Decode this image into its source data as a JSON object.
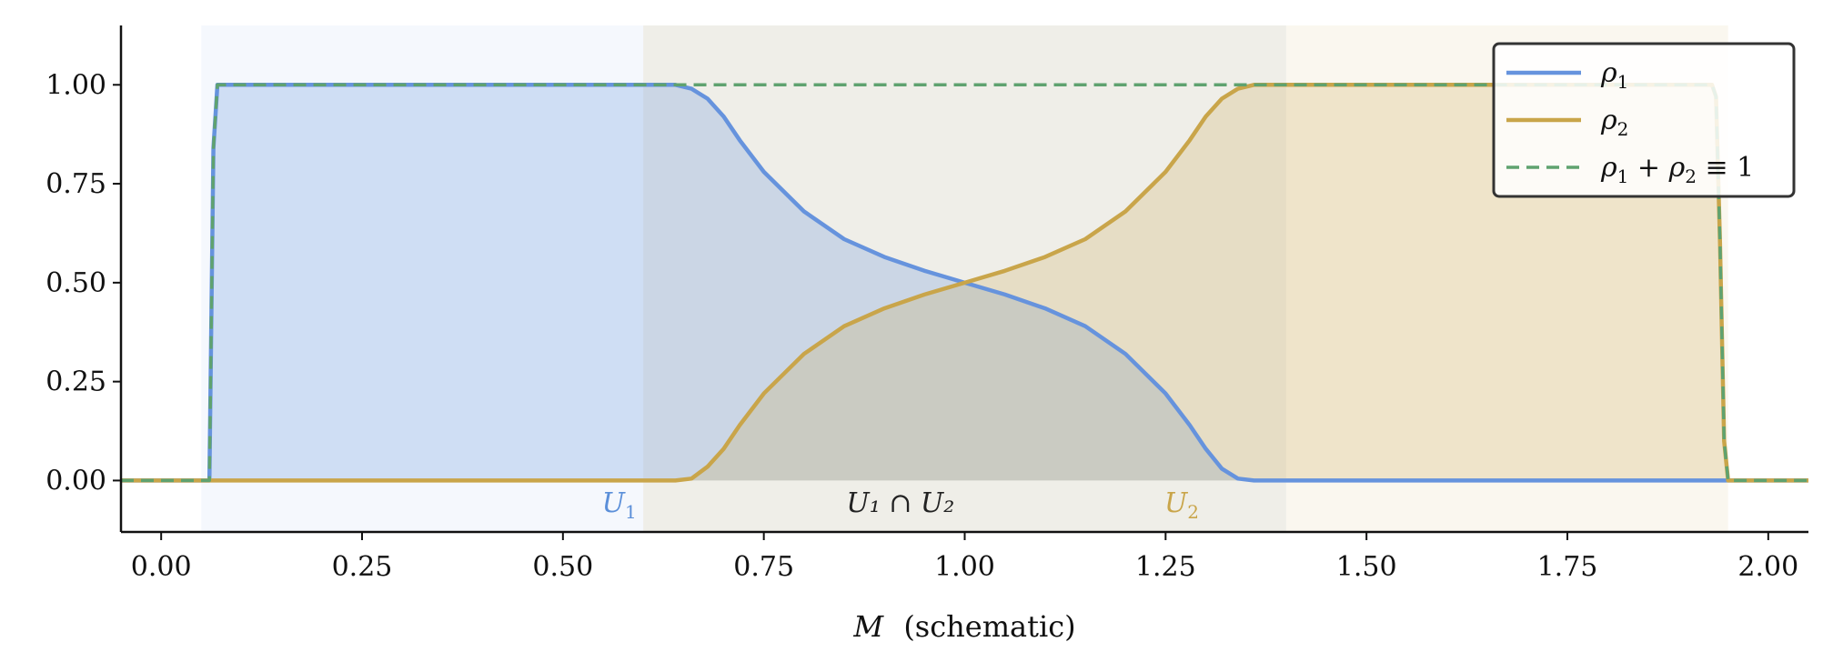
{
  "chart_data": {
    "type": "line",
    "xlabel": {
      "symbol": "M",
      "text": "(schematic)"
    },
    "ylabel": "",
    "title": "",
    "xlim": [
      -0.05,
      2.05
    ],
    "ylim": [
      -0.13,
      1.15
    ],
    "xticks": [
      0.0,
      0.25,
      0.5,
      0.75,
      1.0,
      1.25,
      1.5,
      1.75,
      2.0
    ],
    "xtick_labels": [
      "0.00",
      "0.25",
      "0.50",
      "0.75",
      "1.00",
      "1.25",
      "1.50",
      "1.75",
      "2.00"
    ],
    "yticks": [
      0.0,
      0.25,
      0.5,
      0.75,
      1.0
    ],
    "ytick_labels": [
      "0.00",
      "0.25",
      "0.50",
      "0.75",
      "1.00"
    ],
    "grid": false,
    "legend_position": "top-right",
    "regions": [
      {
        "name": "U1",
        "label_base": "U",
        "label_sub": "1",
        "x": [
          0.05,
          1.4
        ],
        "color": "#5b8fd9"
      },
      {
        "name": "U2",
        "label_base": "U",
        "label_sub": "2",
        "x": [
          0.6,
          1.95
        ],
        "color": "#c9a54a"
      },
      {
        "name": "U1∩U2",
        "label_text": "U₁ ∩ U₂",
        "x": [
          0.6,
          1.4
        ],
        "color": "#222222"
      }
    ],
    "series": [
      {
        "name": "ρ₁",
        "legend_base": "ρ",
        "legend_sub": "1",
        "color": "#6693dd",
        "style": "solid",
        "x": [
          -0.05,
          0.055,
          0.06,
          0.065,
          0.07,
          0.075,
          0.1,
          0.2,
          0.3,
          0.4,
          0.5,
          0.6,
          0.62,
          0.64,
          0.66,
          0.68,
          0.7,
          0.72,
          0.75,
          0.8,
          0.85,
          0.9,
          0.95,
          1.0,
          1.05,
          1.1,
          1.15,
          1.2,
          1.25,
          1.28,
          1.3,
          1.32,
          1.34,
          1.36,
          1.4,
          1.6,
          1.8,
          2.05
        ],
        "values": [
          0.0,
          0.0,
          0.0,
          0.84,
          1.0,
          1.0,
          1.0,
          1.0,
          1.0,
          1.0,
          1.0,
          1.0,
          1.0,
          1.0,
          0.99,
          0.965,
          0.92,
          0.86,
          0.78,
          0.68,
          0.61,
          0.565,
          0.53,
          0.5,
          0.47,
          0.435,
          0.39,
          0.32,
          0.22,
          0.14,
          0.08,
          0.03,
          0.005,
          0.0,
          0.0,
          0.0,
          0.0,
          0.0
        ]
      },
      {
        "name": "ρ₂",
        "legend_base": "ρ",
        "legend_sub": "2",
        "color": "#c9a54a",
        "style": "solid",
        "x": [
          -0.05,
          0.3,
          0.6,
          0.64,
          0.66,
          0.68,
          0.7,
          0.72,
          0.75,
          0.8,
          0.85,
          0.9,
          0.95,
          1.0,
          1.05,
          1.1,
          1.15,
          1.2,
          1.25,
          1.28,
          1.3,
          1.32,
          1.34,
          1.36,
          1.4,
          1.6,
          1.8,
          1.93,
          1.935,
          1.94,
          1.945,
          1.95,
          2.05
        ],
        "values": [
          0.0,
          0.0,
          0.0,
          0.0,
          0.005,
          0.035,
          0.08,
          0.14,
          0.22,
          0.32,
          0.39,
          0.435,
          0.47,
          0.5,
          0.53,
          0.565,
          0.61,
          0.68,
          0.78,
          0.86,
          0.92,
          0.965,
          0.99,
          1.0,
          1.0,
          1.0,
          1.0,
          1.0,
          0.97,
          0.6,
          0.1,
          0.0,
          0.0
        ]
      },
      {
        "name": "ρ₁ + ρ₂ ≡ 1",
        "legend_parts": [
          "ρ",
          "1",
          " + ",
          "ρ",
          "2",
          " ≡ 1"
        ],
        "color": "#5fa26f",
        "style": "dashed",
        "x": [
          -0.05,
          0.055,
          0.06,
          0.065,
          0.07,
          0.075,
          0.5,
          1.0,
          1.5,
          1.93,
          1.935,
          1.94,
          1.945,
          1.95,
          2.05
        ],
        "values": [
          0.0,
          0.0,
          0.0,
          0.84,
          1.0,
          1.0,
          1.0,
          1.0,
          1.0,
          1.0,
          0.97,
          0.6,
          0.1,
          0.0,
          0.0
        ]
      }
    ]
  }
}
